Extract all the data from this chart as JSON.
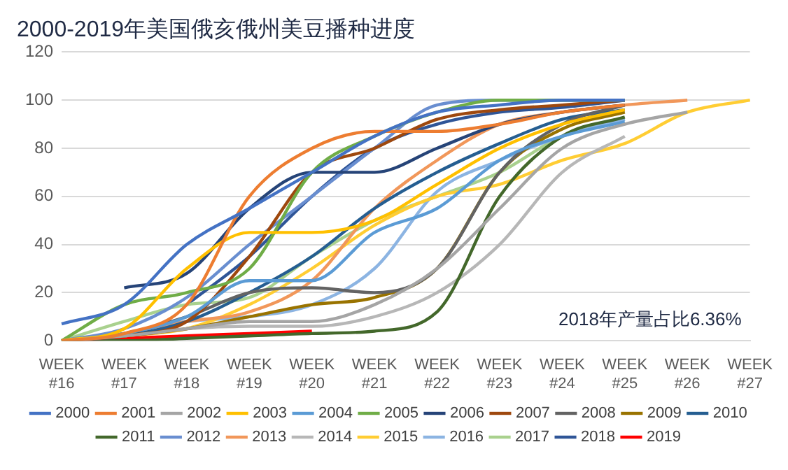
{
  "chart_data": {
    "type": "line",
    "title": "2000-2019年美国俄亥俄州美豆播种进度",
    "categories": [
      "WEEK #16",
      "WEEK #17",
      "WEEK #18",
      "WEEK #19",
      "WEEK #20",
      "WEEK #21",
      "WEEK #22",
      "WEEK #23",
      "WEEK #24",
      "WEEK #25",
      "WEEK #26",
      "WEEK #27"
    ],
    "ylim": [
      0,
      120
    ],
    "yticks": [
      0,
      20,
      40,
      60,
      80,
      100,
      120
    ],
    "grid": "y",
    "legend": "bottom",
    "marker": "none",
    "line_style": "solid",
    "annotations": [
      "2018年产量占比6.36%"
    ],
    "series": [
      {
        "name": "2000",
        "color": "#4472c4",
        "values": [
          7,
          15,
          40,
          55,
          70,
          85,
          95,
          98,
          100,
          100,
          null,
          null
        ]
      },
      {
        "name": "2001",
        "color": "#ed7d31",
        "values": [
          0,
          3,
          15,
          60,
          80,
          87,
          87,
          90,
          95,
          98,
          null,
          null
        ]
      },
      {
        "name": "2002",
        "color": "#a5a5a5",
        "values": [
          0,
          2,
          5,
          8,
          8,
          15,
          30,
          55,
          80,
          90,
          95,
          null
        ]
      },
      {
        "name": "2003",
        "color": "#ffc000",
        "values": [
          0,
          5,
          30,
          45,
          45,
          50,
          65,
          80,
          90,
          96,
          null,
          null
        ]
      },
      {
        "name": "2004",
        "color": "#5b9bd5",
        "values": [
          0,
          3,
          10,
          25,
          25,
          45,
          55,
          75,
          85,
          91,
          null,
          null
        ]
      },
      {
        "name": "2005",
        "color": "#70ad47",
        "values": [
          0,
          15,
          20,
          30,
          70,
          85,
          95,
          100,
          100,
          100,
          null,
          null
        ]
      },
      {
        "name": "2006",
        "color": "#264478",
        "values": [
          null,
          22,
          28,
          55,
          70,
          70,
          80,
          90,
          95,
          98,
          null,
          null
        ]
      },
      {
        "name": "2007",
        "color": "#9e480e",
        "values": [
          0,
          2,
          8,
          35,
          70,
          80,
          92,
          96,
          98,
          100,
          null,
          null
        ]
      },
      {
        "name": "2008",
        "color": "#636363",
        "values": [
          0,
          3,
          10,
          20,
          22,
          20,
          30,
          70,
          90,
          98,
          null,
          null
        ]
      },
      {
        "name": "2009",
        "color": "#997300",
        "values": [
          0,
          2,
          5,
          10,
          15,
          18,
          30,
          70,
          88,
          95,
          null,
          null
        ]
      },
      {
        "name": "2010",
        "color": "#255e91",
        "values": [
          0,
          2,
          8,
          20,
          35,
          55,
          70,
          82,
          92,
          96,
          null,
          null
        ]
      },
      {
        "name": "2011",
        "color": "#43682b",
        "values": [
          0,
          0,
          1,
          2,
          3,
          4,
          12,
          60,
          85,
          93,
          null,
          null
        ]
      },
      {
        "name": "2012",
        "color": "#698ed0",
        "values": [
          0,
          5,
          18,
          40,
          60,
          80,
          98,
          100,
          100,
          100,
          null,
          null
        ]
      },
      {
        "name": "2013",
        "color": "#f1975a",
        "values": [
          0,
          3,
          8,
          12,
          25,
          55,
          75,
          90,
          95,
          98,
          100,
          null
        ]
      },
      {
        "name": "2014",
        "color": "#b7b7b7",
        "values": [
          0,
          2,
          5,
          6,
          6,
          10,
          20,
          40,
          70,
          85,
          null,
          null
        ]
      },
      {
        "name": "2015",
        "color": "#ffcd33",
        "values": [
          0,
          2,
          5,
          15,
          30,
          48,
          60,
          65,
          75,
          82,
          95,
          100
        ]
      },
      {
        "name": "2016",
        "color": "#8cb4e2",
        "values": [
          0,
          3,
          8,
          10,
          15,
          30,
          62,
          75,
          85,
          92,
          null,
          null
        ]
      },
      {
        "name": "2017",
        "color": "#a9d18e",
        "values": [
          0,
          8,
          15,
          18,
          35,
          50,
          60,
          70,
          85,
          92,
          null,
          null
        ]
      },
      {
        "name": "2018",
        "color": "#2f5597",
        "values": [
          null,
          null,
          15,
          35,
          60,
          80,
          90,
          95,
          97,
          100,
          null,
          null
        ]
      },
      {
        "name": "2019",
        "color": "#ff0000",
        "values": [
          0,
          1,
          2,
          3,
          4,
          null,
          null,
          null,
          null,
          null,
          null,
          null
        ]
      }
    ]
  }
}
